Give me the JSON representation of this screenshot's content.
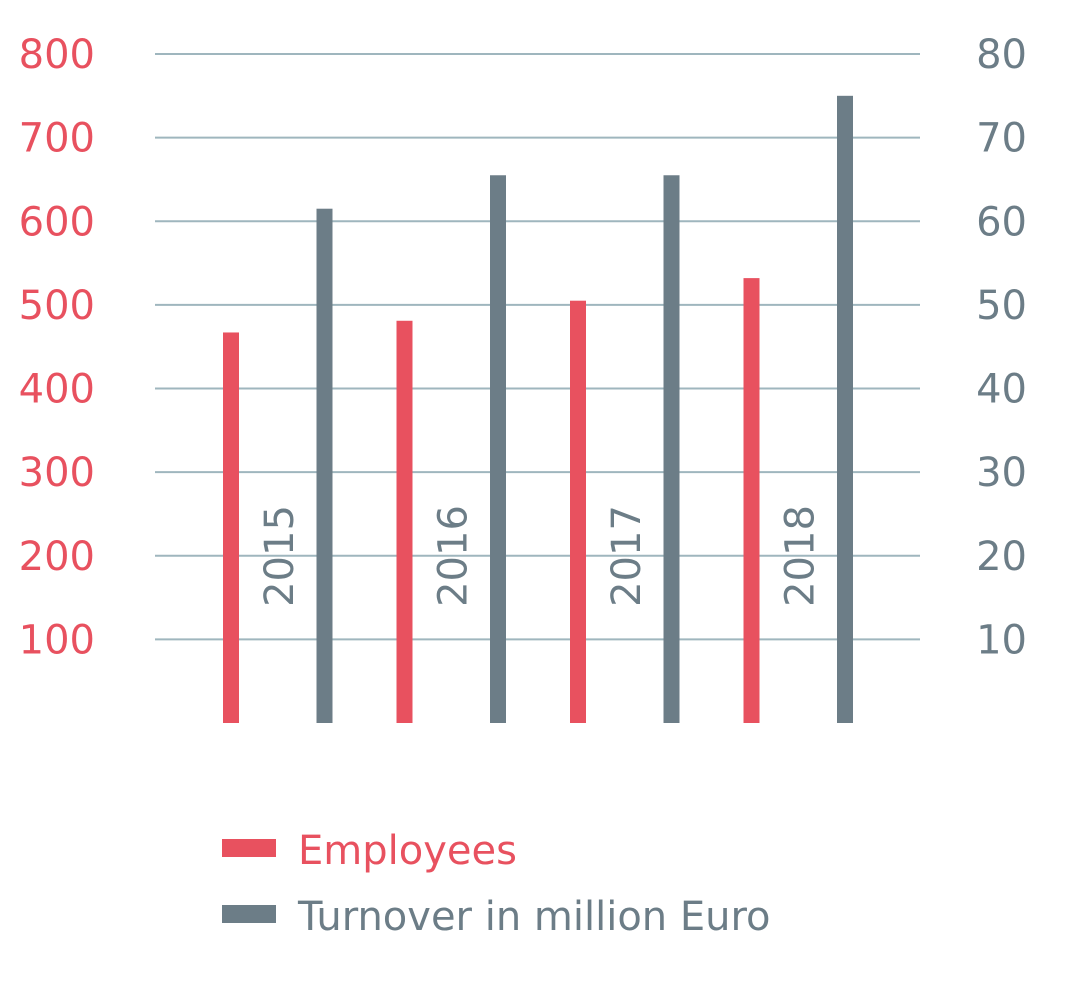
{
  "colors": {
    "employees": "#e8515f",
    "turnover": "#6c7d87",
    "grid": "#9fb6be"
  },
  "chart_data": {
    "type": "bar",
    "categories": [
      "2015",
      "2016",
      "2017",
      "2018"
    ],
    "series": [
      {
        "name": "Employees",
        "axis": "left",
        "values": [
          467,
          481,
          505,
          532
        ]
      },
      {
        "name": "Turnover in million Euro",
        "axis": "right",
        "values": [
          61.5,
          65.5,
          65.5,
          75
        ]
      }
    ],
    "left_axis": {
      "ylim": [
        0,
        800
      ],
      "ticks": [
        "100",
        "200",
        "300",
        "400",
        "500",
        "600",
        "700",
        "800"
      ]
    },
    "right_axis": {
      "ylim": [
        0,
        80
      ],
      "ticks": [
        "10",
        "20",
        "30",
        "40",
        "50",
        "60",
        "70",
        "80"
      ]
    },
    "grid": true,
    "legend": {
      "placement": "bottom",
      "entries": [
        "Employees",
        "Turnover in million Euro"
      ]
    }
  }
}
